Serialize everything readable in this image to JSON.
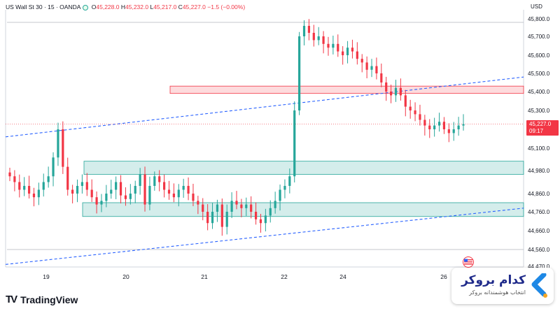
{
  "header": {
    "symbol": "US Wall St 30 · 15 · OANDA",
    "o_label": "O",
    "o": "45,228.0",
    "h_label": "H",
    "h": "45,232.0",
    "l_label": "L",
    "l": "45,217.0",
    "c_label": "C",
    "c": "45,227.0",
    "change": "−1.5 (−0.00%)"
  },
  "currency": "USD",
  "price_tag": {
    "price": "45,227.0",
    "countdown": "09:17"
  },
  "branding": {
    "logo_text": "TradingView"
  },
  "watermark": {
    "title": "کدام بروکر",
    "subtitle": "انتخاب هوشمندانه بروکر"
  },
  "colors": {
    "up": "#26a69a",
    "down": "#f23645",
    "zone_green": "#26a69a",
    "zone_red": "#f23645",
    "trendline": "#2962ff",
    "brand": "#1f2a8a"
  },
  "chart_data": {
    "type": "candlestick",
    "title": "US Wall St 30 · 15 · OANDA",
    "ylim": [
      44460,
      45860
    ],
    "y_ticks": [
      44470,
      44560,
      44660,
      44760,
      44860,
      44980,
      45100,
      45200,
      45300,
      45400,
      45500,
      45600,
      45700,
      45800
    ],
    "y_tick_labels": [
      "44,470.0",
      "44,560.0",
      "44,660.0",
      "44,760.0",
      "44,860.0",
      "44,980.0",
      "45,100.0",
      "45,200.0",
      "45,300.0",
      "45,400.0",
      "45,500.0",
      "45,600.0",
      "45,700.0",
      "45,800.0"
    ],
    "x_tick_labels": [
      "19",
      "20",
      "21",
      "22",
      "24",
      "26"
    ],
    "grid": false,
    "last_price": 45227.0,
    "series_close": [
      44950,
      44920,
      44880,
      44900,
      44860,
      44840,
      44880,
      44920,
      44950,
      45050,
      45200,
      45000,
      44880,
      44860,
      44900,
      44920,
      44880,
      44840,
      44800,
      44820,
      44860,
      44880,
      44920,
      44850,
      44830,
      44860,
      44900,
      44960,
      44800,
      44900,
      44950,
      44920,
      44880,
      44860,
      44840,
      44880,
      44900,
      44860,
      44820,
      44800,
      44760,
      44700,
      44760,
      44800,
      44680,
      44760,
      44820,
      44800,
      44780,
      44800,
      44760,
      44720,
      44700,
      44740,
      44780,
      44820,
      44880,
      44900,
      44950,
      45300,
      45700,
      45760,
      45720,
      45680,
      45700,
      45660,
      45640,
      45660,
      45620,
      45600,
      45640,
      45620,
      45580,
      45560,
      45520,
      45540,
      45500,
      45450,
      45400,
      45380,
      45420,
      45380,
      45320,
      45300,
      45280,
      45250,
      45220,
      45200,
      45220,
      45240,
      45200,
      45180,
      45200,
      45220,
      45227
    ],
    "zones": [
      {
        "kind": "supply",
        "low": 45390,
        "high": 45430
      },
      {
        "kind": "demand",
        "low": 44960,
        "high": 45030
      },
      {
        "kind": "demand",
        "low": 44735,
        "high": 44810
      }
    ],
    "horizontal_levels": [
      45780,
      44560
    ],
    "trendlines": [
      {
        "from": [
          0,
          45160
        ],
        "to": [
          1,
          45480
        ]
      },
      {
        "from": [
          0,
          44480
        ],
        "to": [
          1,
          44780
        ]
      }
    ]
  }
}
